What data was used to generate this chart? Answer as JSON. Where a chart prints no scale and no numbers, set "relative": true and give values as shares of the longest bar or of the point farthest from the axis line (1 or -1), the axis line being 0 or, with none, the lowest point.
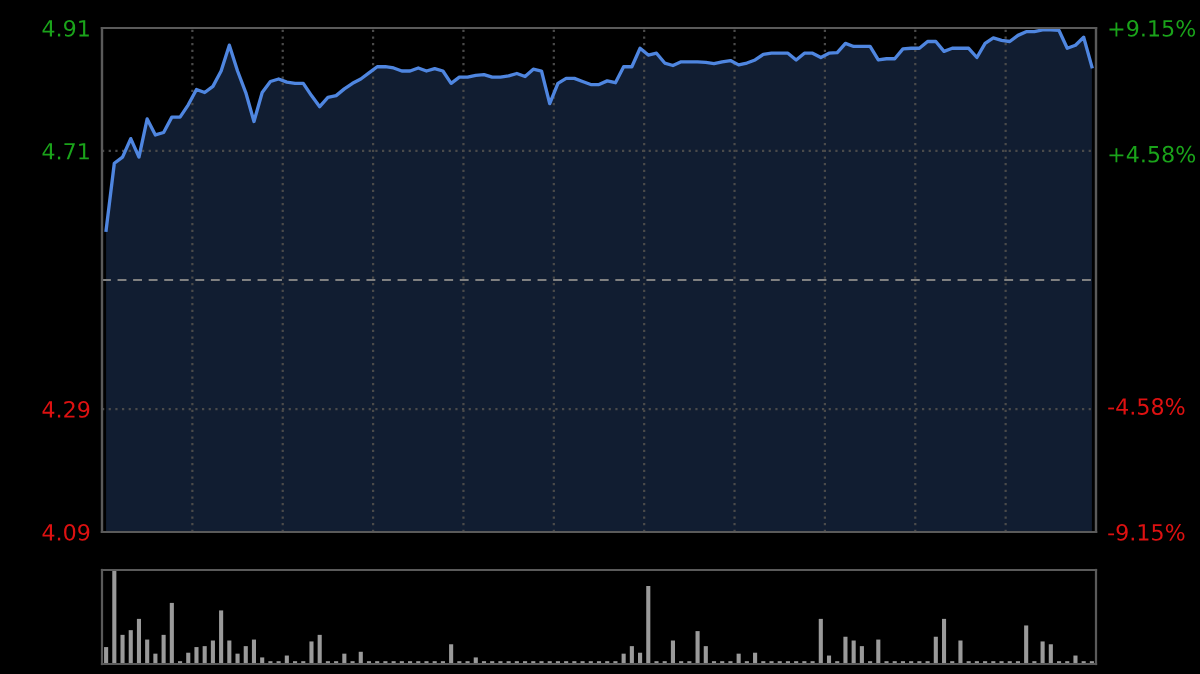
{
  "chart_data": [
    {
      "type": "area",
      "categories": [
        null,
        null,
        null,
        null,
        null,
        null,
        null,
        null,
        null,
        null,
        null,
        null,
        null,
        null,
        null,
        null,
        null,
        null,
        null,
        null,
        null,
        null,
        null,
        null,
        null,
        null,
        null,
        null,
        null,
        null,
        null,
        null,
        null,
        null,
        null,
        null,
        null,
        null,
        null,
        null,
        null,
        null,
        null,
        null,
        null,
        null,
        null,
        null,
        null,
        null,
        null,
        null,
        null,
        null,
        null,
        null,
        null,
        null,
        null,
        null,
        null,
        null,
        null,
        null,
        null,
        null,
        null,
        null,
        null,
        null,
        null,
        null,
        null,
        null,
        null,
        null,
        null,
        null,
        null,
        null,
        null,
        null,
        null,
        null,
        null,
        null,
        null,
        null,
        null,
        null,
        null,
        null,
        null,
        null,
        null,
        null,
        null,
        null,
        null,
        null,
        null,
        null,
        null,
        null,
        null,
        null,
        null,
        null,
        null,
        null,
        null,
        null,
        null,
        null,
        null,
        null,
        null,
        null,
        null,
        null,
        null
      ],
      "series": [
        {
          "color": "#4f86e0",
          "values": [
            4.581,
            4.69,
            4.7,
            4.73,
            4.7,
            4.762,
            4.736,
            4.74,
            4.765,
            4.765,
            4.785,
            4.81,
            4.805,
            4.815,
            4.84,
            4.882,
            4.84,
            4.805,
            4.758,
            4.805,
            4.823,
            4.827,
            4.822,
            4.82,
            4.82,
            4.8,
            4.782,
            4.797,
            4.8,
            4.811,
            4.82,
            4.827,
            4.837,
            4.847,
            4.847,
            4.845,
            4.84,
            4.84,
            4.845,
            4.84,
            4.844,
            4.84,
            4.82,
            4.83,
            4.83,
            4.833,
            4.834,
            4.83,
            4.83,
            4.832,
            4.836,
            4.831,
            4.843,
            4.84,
            4.787,
            4.82,
            4.828,
            4.828,
            4.823,
            4.818,
            4.818,
            4.824,
            4.821,
            4.847,
            4.847,
            4.877,
            4.866,
            4.869,
            4.853,
            4.849,
            4.855,
            4.855,
            4.855,
            4.854,
            4.852,
            4.855,
            4.857,
            4.85,
            4.853,
            4.858,
            4.867,
            4.869,
            4.869,
            4.869,
            4.858,
            4.869,
            4.869,
            4.862,
            4.869,
            4.87,
            4.885,
            4.88,
            4.88,
            4.88,
            4.858,
            4.86,
            4.86,
            4.876,
            4.877,
            4.877,
            4.888,
            4.888,
            4.872,
            4.877,
            4.877,
            4.877,
            4.862,
            4.885,
            4.894,
            4.89,
            4.888,
            4.898,
            4.904,
            4.904,
            4.907,
            4.907,
            4.906,
            4.877,
            4.882,
            4.895,
            4.847
          ]
        }
      ],
      "ylim": [
        4.09,
        4.91
      ],
      "yticks": [
        4.09,
        4.29,
        4.71,
        4.91
      ],
      "y2lim": [
        -9.15,
        9.15
      ],
      "y2ticks": [
        {
          "value": 9.15,
          "label": "+9.15%"
        },
        {
          "value": 4.58,
          "label": "+4.58%"
        },
        {
          "value": -4.58,
          "label": "-4.58%"
        },
        {
          "value": -9.15,
          "label": "-9.15%"
        }
      ],
      "ref_lines": [
        {
          "axis": "y",
          "value": 4.5,
          "color": "#808080",
          "line_style": "dashed"
        }
      ],
      "grid": true,
      "tick_labels": "y"
    },
    {
      "type": "bar",
      "relative": true,
      "categories": [
        null,
        null,
        null,
        null,
        null,
        null,
        null,
        null,
        null,
        null,
        null,
        null,
        null,
        null,
        null,
        null,
        null,
        null,
        null,
        null,
        null,
        null,
        null,
        null,
        null,
        null,
        null,
        null,
        null,
        null,
        null,
        null,
        null,
        null,
        null,
        null,
        null,
        null,
        null,
        null,
        null,
        null,
        null,
        null,
        null,
        null,
        null,
        null,
        null,
        null,
        null,
        null,
        null,
        null,
        null,
        null,
        null,
        null,
        null,
        null,
        null,
        null,
        null,
        null,
        null,
        null,
        null,
        null,
        null,
        null,
        null,
        null,
        null,
        null,
        null,
        null,
        null,
        null,
        null,
        null,
        null,
        null,
        null,
        null,
        null,
        null,
        null,
        null,
        null,
        null,
        null,
        null,
        null,
        null,
        null,
        null,
        null,
        null,
        null,
        null,
        null,
        null,
        null,
        null,
        null,
        null,
        null,
        null,
        null,
        null,
        null,
        null,
        null,
        null,
        null,
        null,
        null,
        null,
        null,
        null,
        null
      ],
      "values": [
        0.18,
        1.0,
        0.31,
        0.36,
        0.48,
        0.26,
        0.11,
        0.31,
        0.65,
        0.03,
        0.12,
        0.18,
        0.19,
        0.25,
        0.57,
        0.25,
        0.11,
        0.19,
        0.26,
        0.07,
        0.03,
        0.03,
        0.09,
        0.03,
        0.03,
        0.24,
        0.31,
        0.03,
        0.03,
        0.11,
        0.03,
        0.13,
        0.03,
        0.03,
        0.03,
        0.03,
        0.03,
        0.03,
        0.03,
        0.03,
        0.03,
        0.03,
        0.21,
        0.03,
        0.03,
        0.07,
        0.03,
        0.03,
        0.03,
        0.03,
        0.03,
        0.03,
        0.03,
        0.03,
        0.03,
        0.03,
        0.03,
        0.03,
        0.03,
        0.03,
        0.03,
        0.03,
        0.03,
        0.11,
        0.19,
        0.12,
        0.83,
        0.03,
        0.03,
        0.25,
        0.03,
        0.03,
        0.35,
        0.19,
        0.03,
        0.03,
        0.03,
        0.11,
        0.03,
        0.12,
        0.03,
        0.03,
        0.03,
        0.03,
        0.03,
        0.03,
        0.03,
        0.48,
        0.09,
        0.03,
        0.29,
        0.25,
        0.19,
        0.03,
        0.26,
        0.03,
        0.03,
        0.03,
        0.03,
        0.03,
        0.03,
        0.29,
        0.48,
        0.03,
        0.25,
        0.03,
        0.03,
        0.03,
        0.03,
        0.03,
        0.03,
        0.03,
        0.41,
        0.03,
        0.24,
        0.21,
        0.03,
        0.03,
        0.09,
        0.03,
        0.03
      ],
      "color": "#9a9a9a",
      "tick_labels": false
    }
  ]
}
